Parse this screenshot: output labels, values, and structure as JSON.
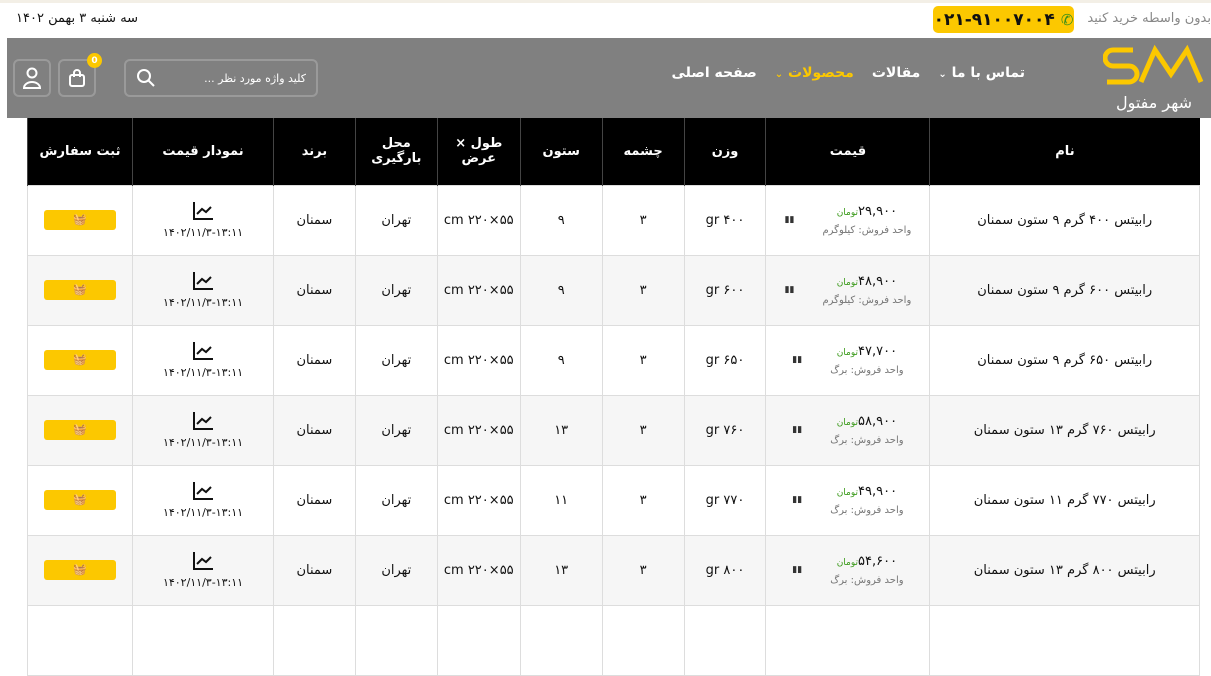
{
  "topbar": {
    "date": "سه شنبه ۳ بهمن ۱۴۰۲",
    "tagline": "بدون واسطه خرید کنید",
    "phone": "۰۲۱-۹۱۰۰۷۰۰۴"
  },
  "nav": {
    "logo_text": "شهر مفتول",
    "menu": [
      {
        "label": "صفحه اصلی"
      },
      {
        "label": "محصولات"
      },
      {
        "label": "مقالات"
      },
      {
        "label": "تماس با ما"
      }
    ],
    "search_placeholder": "کلید واژه مورد نظر ...",
    "cart_count": "0"
  },
  "accent": "#fcc800",
  "table": {
    "headers": [
      "نام",
      "قیمت",
      "وزن",
      "چشمه",
      "ستون",
      "طول × عرض",
      "محل بارگیری",
      "برند",
      "نمودار قیمت",
      "ثبت سفارش"
    ],
    "currency": "تومان",
    "rows": [
      {
        "name": "رابیتس ۴۰۰ گرم ۹ ستون سمنان",
        "price": "۲۹,۹۰۰",
        "unit": "واحد فروش: کیلوگرم",
        "weight": "۴۰۰ gr",
        "cheshmeh": "۳",
        "sotun": "۹",
        "size": "۵۵×۲۲۰ cm",
        "place": "تهران",
        "brand": "سمنان",
        "date": "۱۴۰۲/۱۱/۳-۱۳:۱۱"
      },
      {
        "name": "رابیتس ۶۰۰ گرم ۹ ستون سمنان",
        "price": "۴۸,۹۰۰",
        "unit": "واحد فروش: کیلوگرم",
        "weight": "۶۰۰ gr",
        "cheshmeh": "۳",
        "sotun": "۹",
        "size": "۵۵×۲۲۰ cm",
        "place": "تهران",
        "brand": "سمنان",
        "date": "۱۴۰۲/۱۱/۳-۱۳:۱۱"
      },
      {
        "name": "رابیتس ۶۵۰ گرم ۹ ستون سمنان",
        "price": "۴۷,۷۰۰",
        "unit": "واحد فروش: برگ",
        "weight": "۶۵۰ gr",
        "cheshmeh": "۳",
        "sotun": "۹",
        "size": "۵۵×۲۲۰ cm",
        "place": "تهران",
        "brand": "سمنان",
        "date": "۱۴۰۲/۱۱/۳-۱۳:۱۱"
      },
      {
        "name": "رابیتس ۷۶۰ گرم ۱۳ ستون سمنان",
        "price": "۵۸,۹۰۰",
        "unit": "واحد فروش: برگ",
        "weight": "۷۶۰ gr",
        "cheshmeh": "۳",
        "sotun": "۱۳",
        "size": "۵۵×۲۲۰ cm",
        "place": "تهران",
        "brand": "سمنان",
        "date": "۱۴۰۲/۱۱/۳-۱۳:۱۱"
      },
      {
        "name": "رابیتس ۷۷۰ گرم ۱۱ ستون سمنان",
        "price": "۴۹,۹۰۰",
        "unit": "واحد فروش: برگ",
        "weight": "۷۷۰ gr",
        "cheshmeh": "۳",
        "sotun": "۱۱",
        "size": "۵۵×۲۲۰ cm",
        "place": "تهران",
        "brand": "سمنان",
        "date": "۱۴۰۲/۱۱/۳-۱۳:۱۱"
      },
      {
        "name": "رابیتس ۸۰۰ گرم ۱۳ ستون سمنان",
        "price": "۵۴,۶۰۰",
        "unit": "واحد فروش: برگ",
        "weight": "۸۰۰ gr",
        "cheshmeh": "۳",
        "sotun": "۱۳",
        "size": "۵۵×۲۲۰ cm",
        "place": "تهران",
        "brand": "سمنان",
        "date": "۱۴۰۲/۱۱/۳-۱۳:۱۱"
      }
    ]
  }
}
